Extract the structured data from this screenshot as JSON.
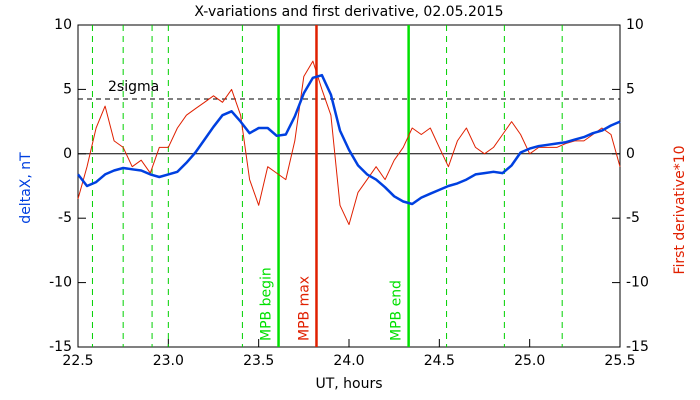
{
  "chart_data": {
    "type": "line",
    "title": "X-variations and first derivative, 02.05.2015",
    "xlabel": "UT, hours",
    "ylabel": {
      "text": "deltaX, nT",
      "color": "#0040e0"
    },
    "y2label": {
      "text": "First derivative*10",
      "color": "#e02000"
    },
    "xlim": [
      22.5,
      25.5
    ],
    "xticks": [
      22.5,
      {
        "value": 23,
        "label": "23.0"
      },
      23.5,
      {
        "value": 24,
        "label": "24.0"
      },
      24.5,
      {
        "value": 25,
        "label": "25.0"
      },
      25.5
    ],
    "ylim": [
      -15,
      10
    ],
    "yticks": [
      -15,
      -10,
      -5,
      0,
      5,
      10
    ],
    "y2lim": [
      -15,
      10
    ],
    "y2ticks": [
      -15,
      -10,
      -5,
      0,
      5,
      10
    ],
    "x": [
      22.5,
      22.55,
      22.6,
      22.65,
      22.7,
      22.75,
      22.8,
      22.85,
      22.9,
      22.95,
      23,
      23.05,
      23.1,
      23.15,
      23.2,
      23.25,
      23.3,
      23.35,
      23.4,
      23.45,
      23.5,
      23.55,
      23.6,
      23.65,
      23.7,
      23.75,
      23.8,
      23.85,
      23.9,
      23.95,
      24,
      24.05,
      24.1,
      24.15,
      24.2,
      24.25,
      24.3,
      24.35,
      24.4,
      24.45,
      24.5,
      24.55,
      24.6,
      24.65,
      24.7,
      24.75,
      24.8,
      24.85,
      24.9,
      24.95,
      25,
      25.05,
      25.1,
      25.15,
      25.2,
      25.25,
      25.3,
      25.35,
      25.4,
      25.45,
      25.5
    ],
    "series": [
      {
        "color": "#0040e0",
        "width": 2.5,
        "values": [
          -1.6,
          -2.5,
          -2.2,
          -1.6,
          -1.3,
          -1.1,
          -1.2,
          -1.3,
          -1.6,
          -1.8,
          -1.6,
          -1.4,
          -0.7,
          0.1,
          1.1,
          2.1,
          3.0,
          3.3,
          2.5,
          1.6,
          2.0,
          2.0,
          1.4,
          1.5,
          2.9,
          4.7,
          5.9,
          6.1,
          4.6,
          1.8,
          0.3,
          -0.9,
          -1.6,
          -2.0,
          -2.6,
          -3.3,
          -3.7,
          -3.9,
          -3.4,
          -3.1,
          -2.8,
          -2.5,
          -2.3,
          -2.0,
          -1.6,
          -1.5,
          -1.4,
          -1.5,
          -0.9,
          0.1,
          0.4,
          0.6,
          0.7,
          0.8,
          0.9,
          1.1,
          1.3,
          1.6,
          1.8,
          2.2,
          2.5
        ]
      },
      {
        "color": "#e02000",
        "width": 1,
        "axis": "y2",
        "values": [
          -3.5,
          -1,
          2,
          3.7,
          1,
          0.5,
          -1,
          -0.5,
          -1.5,
          0.5,
          0.5,
          2,
          3,
          3.5,
          4,
          4.5,
          4,
          5,
          3,
          -2,
          -4,
          -1,
          -1.5,
          -2,
          1,
          6,
          7.2,
          5,
          3,
          -4,
          -5.5,
          -3,
          -2,
          -1,
          -2,
          -0.5,
          0.5,
          2,
          1.5,
          2,
          0.5,
          -1,
          1,
          2,
          0.5,
          0,
          0.5,
          1.5,
          2.5,
          1.5,
          0,
          0.5,
          0.5,
          0.5,
          0.8,
          1,
          1,
          1.5,
          2,
          1.5,
          -1
        ]
      }
    ],
    "hlines": [
      {
        "y": 4.25,
        "label": "2sigma",
        "style": "dashed",
        "color": "#000000"
      },
      {
        "y": 0,
        "style": "solid",
        "color": "#000000"
      }
    ],
    "vlines": [
      {
        "x": 22.58,
        "style": "dashed",
        "color": "#00d000"
      },
      {
        "x": 22.75,
        "style": "dashed",
        "color": "#00d000"
      },
      {
        "x": 22.91,
        "style": "dashed",
        "color": "#00d000"
      },
      {
        "x": 23.0,
        "style": "dashed",
        "color": "#00d000"
      },
      {
        "x": 23.41,
        "style": "dashed",
        "color": "#00d000"
      },
      {
        "x": 24.54,
        "style": "dashed",
        "color": "#00d000"
      },
      {
        "x": 24.86,
        "style": "dashed",
        "color": "#00d000"
      },
      {
        "x": 25.18,
        "style": "dashed",
        "color": "#00d000"
      },
      {
        "x": 23.61,
        "style": "solid",
        "color": "#00e000",
        "label": "MPB begin"
      },
      {
        "x": 23.82,
        "style": "solid",
        "color": "#e02000",
        "label": "MPB max"
      },
      {
        "x": 24.33,
        "style": "solid",
        "color": "#00e000",
        "label": "MPB end"
      }
    ]
  }
}
